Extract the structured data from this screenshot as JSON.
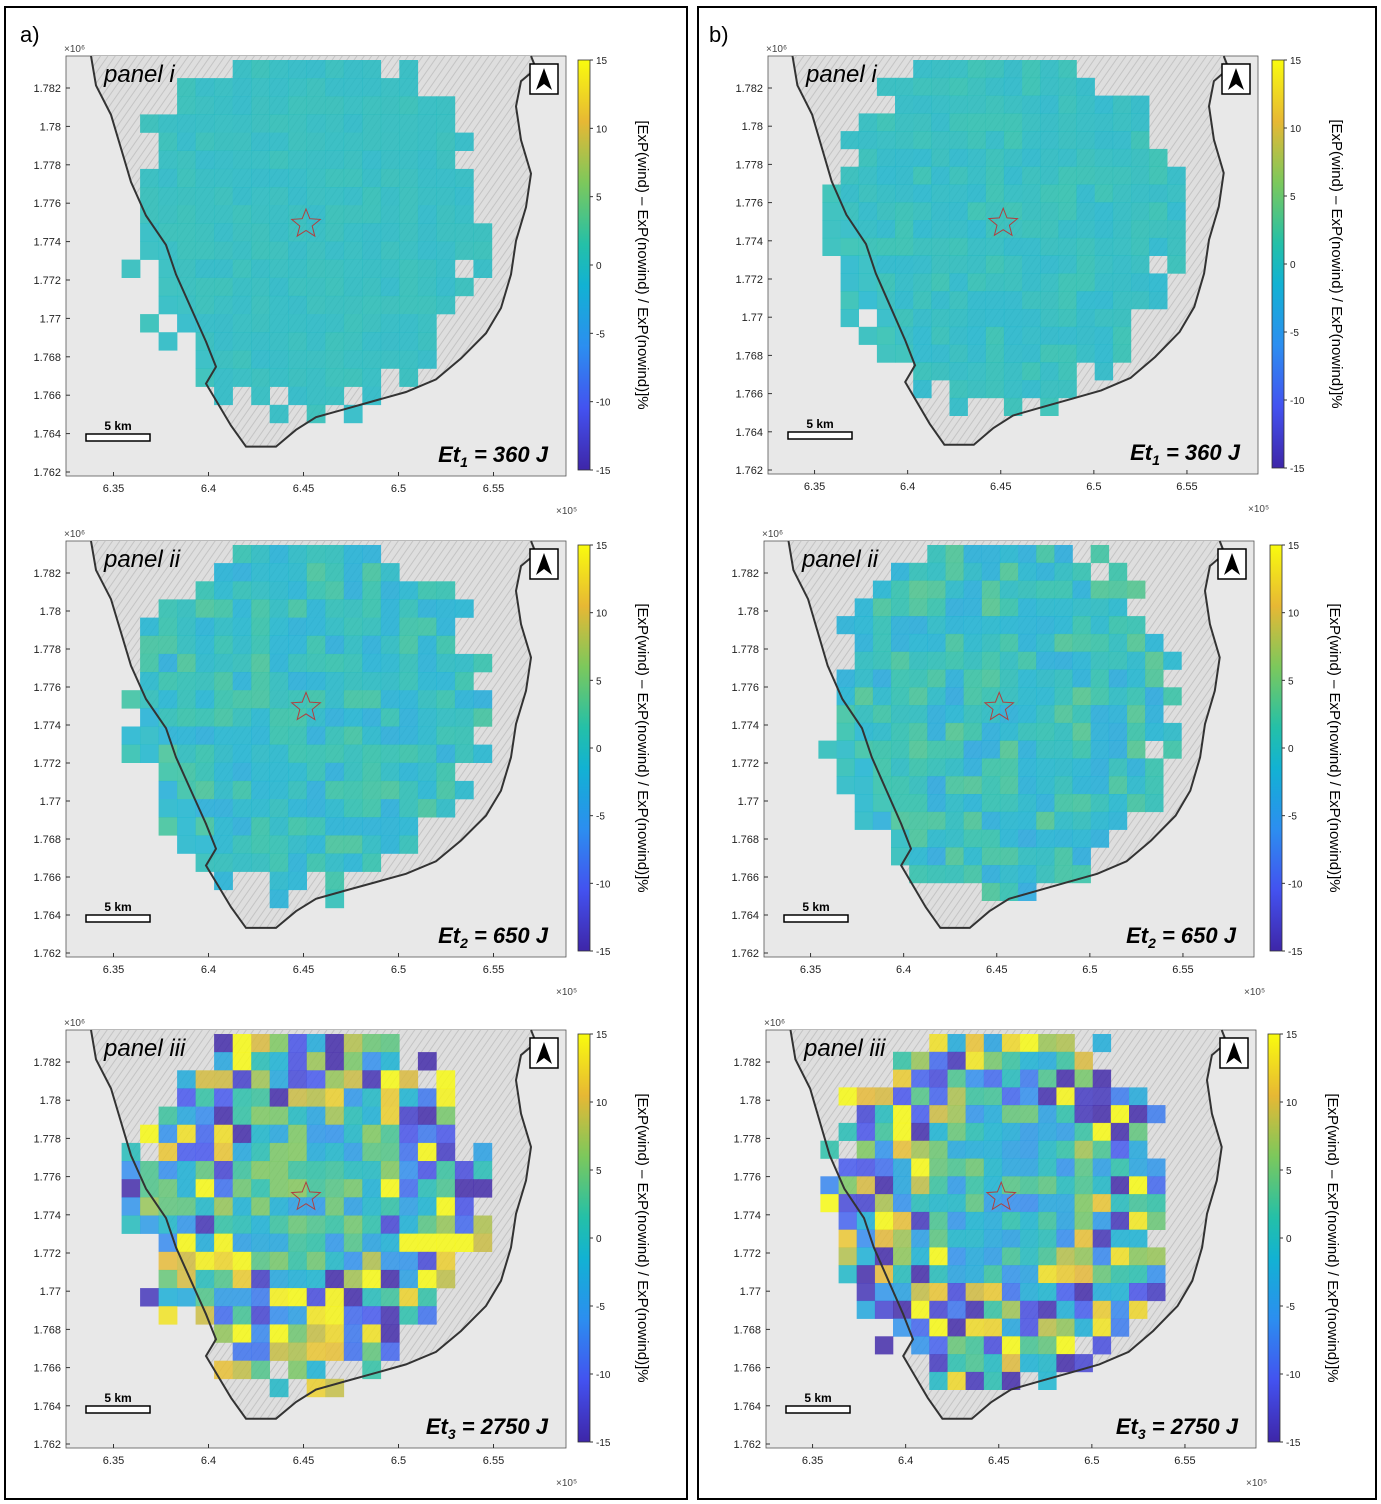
{
  "figure": {
    "colorbar_label": "[ExP(wind) – ExP(nowind) / ExP(nowind)]%",
    "colorbar_ticks": [
      "15",
      "10",
      "5",
      "0",
      "-5",
      "-10",
      "-15"
    ],
    "scale_bar_label": "5 km",
    "x_exponent": "×10⁵",
    "y_exponent": "×10⁶",
    "colors": {
      "map_bg": "#e8e8e8",
      "hill": "#cfcfcf",
      "cell_base": "#58c8a8",
      "coast": "#333333",
      "star": "#b04040"
    }
  },
  "columns": [
    {
      "label": "a)",
      "side": "a"
    },
    {
      "label": "b)",
      "side": "b"
    }
  ],
  "chart_data": [
    {
      "type": "heatmap",
      "column": "a",
      "panel": "panel i",
      "energy_main": "Et",
      "energy_sub": "1",
      "energy_value": " = 360  J",
      "xticks": [
        "6.35",
        "6.4",
        "6.45",
        "6.5",
        "6.55"
      ],
      "yticks": [
        "1.782",
        "1.78",
        "1.778",
        "1.776",
        "1.774",
        "1.772",
        "1.77",
        "1.768",
        "1.766",
        "1.764",
        "1.762"
      ],
      "xlim": [
        631000,
        658000
      ],
      "ylim": [
        1761800,
        1783400
      ],
      "clim": [
        -15,
        15
      ],
      "variability": 0.05
    },
    {
      "type": "heatmap",
      "column": "a",
      "panel": "panel ii",
      "energy_main": "Et",
      "energy_sub": "2",
      "energy_value": " = 650  J",
      "xticks": [
        "6.35",
        "6.4",
        "6.45",
        "6.5",
        "6.55"
      ],
      "yticks": [
        "1.782",
        "1.78",
        "1.778",
        "1.776",
        "1.774",
        "1.772",
        "1.77",
        "1.768",
        "1.766",
        "1.764",
        "1.762"
      ],
      "xlim": [
        631000,
        658000
      ],
      "ylim": [
        1761800,
        1783400
      ],
      "clim": [
        -15,
        15
      ],
      "variability": 0.18
    },
    {
      "type": "heatmap",
      "column": "a",
      "panel": "panel iii",
      "energy_main": "Et",
      "energy_sub": "3",
      "energy_value": " = 2750  J",
      "xticks": [
        "6.35",
        "6.4",
        "6.45",
        "6.5",
        "6.55"
      ],
      "yticks": [
        "1.782",
        "1.78",
        "1.778",
        "1.776",
        "1.774",
        "1.772",
        "1.77",
        "1.768",
        "1.766",
        "1.764",
        "1.762"
      ],
      "xlim": [
        631000,
        658000
      ],
      "ylim": [
        1761800,
        1783400
      ],
      "clim": [
        -15,
        15
      ],
      "variability": 0.95
    },
    {
      "type": "heatmap",
      "column": "b",
      "panel": "panel i",
      "energy_main": "Et",
      "energy_sub": "1",
      "energy_value": " = 360  J",
      "xticks": [
        "6.35",
        "6.4",
        "6.45",
        "6.5",
        "6.55"
      ],
      "yticks": [
        "1.782",
        "1.78",
        "1.778",
        "1.776",
        "1.774",
        "1.772",
        "1.77",
        "1.768",
        "1.766",
        "1.764",
        "1.762"
      ],
      "xlim": [
        631000,
        658000
      ],
      "ylim": [
        1761800,
        1783400
      ],
      "clim": [
        -15,
        15
      ],
      "variability": 0.08
    },
    {
      "type": "heatmap",
      "column": "b",
      "panel": "panel ii",
      "energy_main": "Et",
      "energy_sub": "2",
      "energy_value": " = 650  J",
      "xticks": [
        "6.35",
        "6.4",
        "6.45",
        "6.5",
        "6.55"
      ],
      "yticks": [
        "1.782",
        "1.78",
        "1.778",
        "1.776",
        "1.774",
        "1.772",
        "1.77",
        "1.768",
        "1.766",
        "1.764",
        "1.762"
      ],
      "xlim": [
        631000,
        658000
      ],
      "ylim": [
        1761800,
        1783400
      ],
      "clim": [
        -15,
        15
      ],
      "variability": 0.22
    },
    {
      "type": "heatmap",
      "column": "b",
      "panel": "panel iii",
      "energy_main": "Et",
      "energy_sub": "3",
      "energy_value": " = 2750  J",
      "xticks": [
        "6.35",
        "6.4",
        "6.45",
        "6.5",
        "6.55"
      ],
      "yticks": [
        "1.782",
        "1.78",
        "1.778",
        "1.776",
        "1.774",
        "1.772",
        "1.77",
        "1.768",
        "1.766",
        "1.764",
        "1.762"
      ],
      "xlim": [
        631000,
        658000
      ],
      "ylim": [
        1761800,
        1783400
      ],
      "clim": [
        -15,
        15
      ],
      "variability": 0.95
    }
  ]
}
